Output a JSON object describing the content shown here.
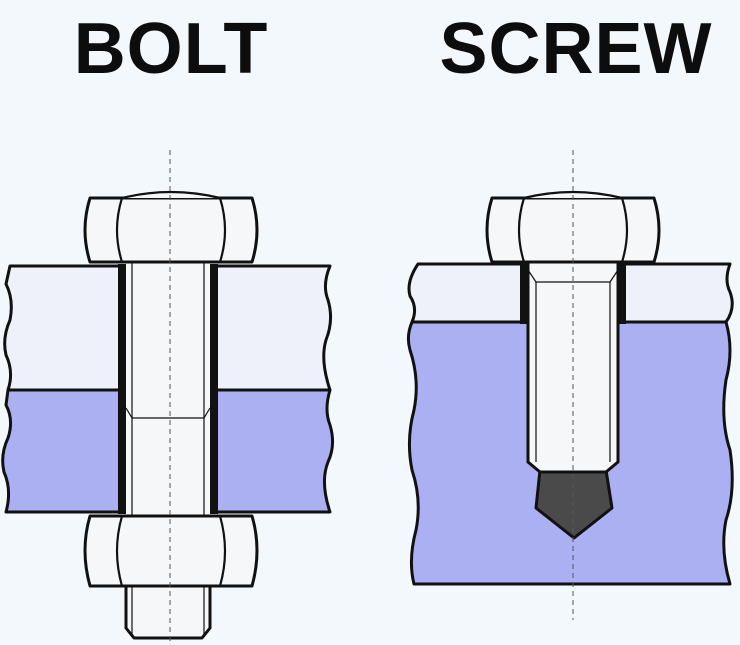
{
  "titles": {
    "bolt": "BOLT",
    "screw": "SCREW"
  },
  "colors": {
    "background": "#f3f8fd",
    "upper_plate": "#eef1f9",
    "lower_plate": "#aab0f2",
    "metal": "#f6f7f8",
    "outline": "#111111",
    "screw_tip": "#4a4a4a",
    "centerline": "#555555"
  }
}
